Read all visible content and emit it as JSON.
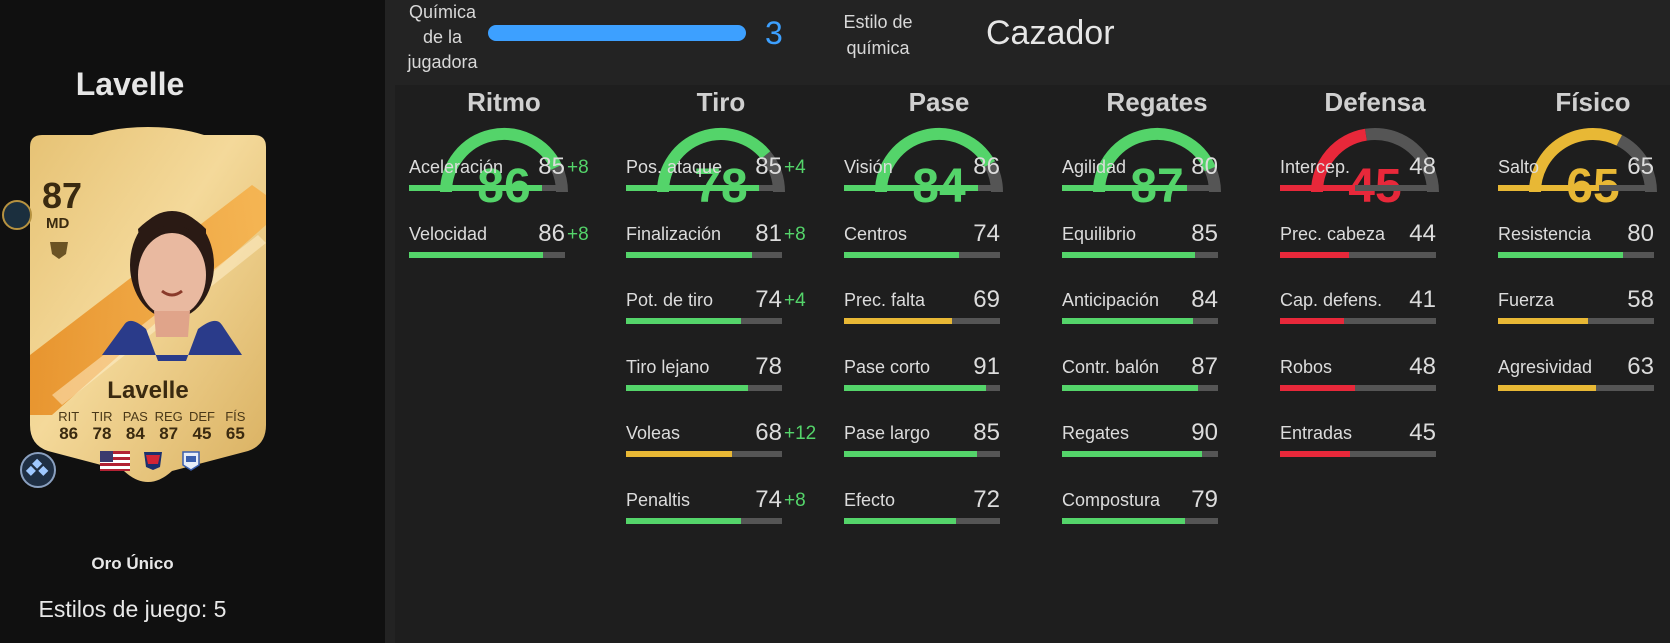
{
  "player": {
    "name": "Lavelle",
    "version": "Oro Único",
    "playstyles": "Estilos de juego: 5"
  },
  "card": {
    "rating": "87",
    "position": "MD",
    "name": "Lavelle",
    "stat_labels": [
      "RIT",
      "TIR",
      "PAS",
      "REG",
      "DEF",
      "FÍS"
    ],
    "stat_values": [
      "86",
      "78",
      "84",
      "87",
      "45",
      "65"
    ]
  },
  "chemistry": {
    "label_lines": [
      "Química",
      "de la",
      "jugadora"
    ],
    "value": "3",
    "fraction": 1.0,
    "style_label_lines": [
      "Estilo de",
      "química"
    ],
    "style": "Cazador",
    "color": "#3da0ff"
  },
  "colors": {
    "green": "#54d46a",
    "yellow": "#e8b835",
    "red": "#e8283a",
    "track": "#555555"
  },
  "attributes": [
    {
      "title": "Ritmo",
      "value": "86",
      "level": "green",
      "subs": [
        {
          "name": "Aceleración",
          "value": "85",
          "boost": "+8",
          "level": "green"
        },
        {
          "name": "Velocidad",
          "value": "86",
          "boost": "+8",
          "level": "green"
        }
      ]
    },
    {
      "title": "Tiro",
      "value": "78",
      "level": "green",
      "subs": [
        {
          "name": "Pos. ataque",
          "value": "85",
          "boost": "+4",
          "level": "green"
        },
        {
          "name": "Finalización",
          "value": "81",
          "boost": "+8",
          "level": "green"
        },
        {
          "name": "Pot. de tiro",
          "value": "74",
          "boost": "+4",
          "level": "green"
        },
        {
          "name": "Tiro lejano",
          "value": "78",
          "boost": "",
          "level": "green"
        },
        {
          "name": "Voleas",
          "value": "68",
          "boost": "+12",
          "level": "yellow"
        },
        {
          "name": "Penaltis",
          "value": "74",
          "boost": "+8",
          "level": "green"
        }
      ]
    },
    {
      "title": "Pase",
      "value": "84",
      "level": "green",
      "subs": [
        {
          "name": "Visión",
          "value": "86",
          "boost": "",
          "level": "green"
        },
        {
          "name": "Centros",
          "value": "74",
          "boost": "",
          "level": "green"
        },
        {
          "name": "Prec. falta",
          "value": "69",
          "boost": "",
          "level": "yellow"
        },
        {
          "name": "Pase corto",
          "value": "91",
          "boost": "",
          "level": "green"
        },
        {
          "name": "Pase largo",
          "value": "85",
          "boost": "",
          "level": "green"
        },
        {
          "name": "Efecto",
          "value": "72",
          "boost": "",
          "level": "green"
        }
      ]
    },
    {
      "title": "Regates",
      "value": "87",
      "level": "green",
      "subs": [
        {
          "name": "Agilidad",
          "value": "80",
          "boost": "",
          "level": "green"
        },
        {
          "name": "Equilibrio",
          "value": "85",
          "boost": "",
          "level": "green"
        },
        {
          "name": "Anticipación",
          "value": "84",
          "boost": "",
          "level": "green"
        },
        {
          "name": "Contr. balón",
          "value": "87",
          "boost": "",
          "level": "green"
        },
        {
          "name": "Regates",
          "value": "90",
          "boost": "",
          "level": "green"
        },
        {
          "name": "Compostura",
          "value": "79",
          "boost": "",
          "level": "green"
        }
      ]
    },
    {
      "title": "Defensa",
      "value": "45",
      "level": "red",
      "subs": [
        {
          "name": "Intercep.",
          "value": "48",
          "boost": "",
          "level": "red"
        },
        {
          "name": "Prec. cabeza",
          "value": "44",
          "boost": "",
          "level": "red"
        },
        {
          "name": "Cap. defens.",
          "value": "41",
          "boost": "",
          "level": "red"
        },
        {
          "name": "Robos",
          "value": "48",
          "boost": "",
          "level": "red"
        },
        {
          "name": "Entradas",
          "value": "45",
          "boost": "",
          "level": "red"
        }
      ]
    },
    {
      "title": "Físico",
      "value": "65",
      "level": "yellow",
      "subs": [
        {
          "name": "Salto",
          "value": "65",
          "boost": "",
          "level": "yellow"
        },
        {
          "name": "Resistencia",
          "value": "80",
          "boost": "",
          "level": "green"
        },
        {
          "name": "Fuerza",
          "value": "58",
          "boost": "",
          "level": "yellow"
        },
        {
          "name": "Agresividad",
          "value": "63",
          "boost": "",
          "level": "yellow"
        }
      ]
    }
  ]
}
